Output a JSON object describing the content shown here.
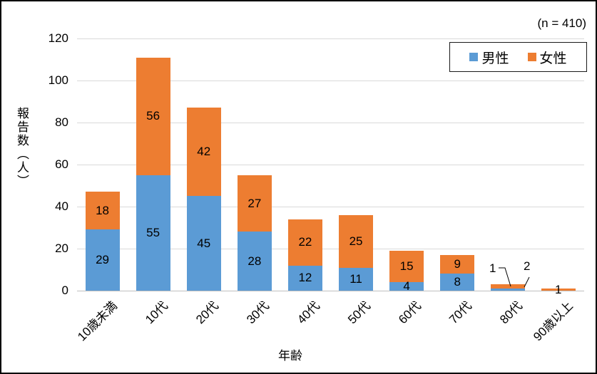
{
  "annotation": {
    "n_label": "(n = 410)"
  },
  "chart_data": {
    "type": "bar",
    "stacked": true,
    "title": "",
    "categories": [
      "10歳未満",
      "10代",
      "20代",
      "30代",
      "40代",
      "50代",
      "60代",
      "70代",
      "80代",
      "90歳以上"
    ],
    "series": [
      {
        "name": "男性",
        "color": "#5B9BD5",
        "values": [
          29,
          55,
          45,
          28,
          12,
          11,
          4,
          8,
          1,
          0
        ]
      },
      {
        "name": "女性",
        "color": "#ED7D31",
        "values": [
          18,
          56,
          42,
          27,
          22,
          25,
          15,
          9,
          2,
          1
        ]
      }
    ],
    "totals": [
      47,
      111,
      87,
      55,
      34,
      36,
      19,
      17,
      3,
      1
    ],
    "xlabel": "年齢",
    "ylabel": "報告数（人）",
    "ylim": [
      0,
      120
    ],
    "ytick_step": 20,
    "grid": true,
    "legend_position": "top-right-inside"
  },
  "colors": {
    "male": "#5B9BD5",
    "female": "#ED7D31",
    "gridline": "#D9D9D9",
    "axis_line": "#BFBFBF",
    "text": "#000000",
    "frame_border": "#000000"
  }
}
